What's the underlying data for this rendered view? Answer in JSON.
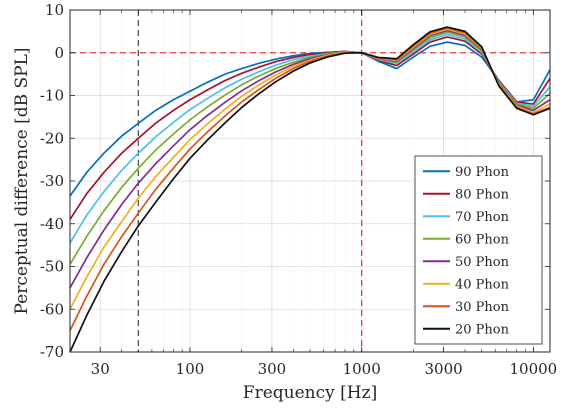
{
  "chart_data": {
    "type": "line",
    "title": "",
    "xlabel": "Frequency [Hz]",
    "ylabel": "Perceptual difference [dB SPL]",
    "xscale": "log",
    "xlim": [
      20,
      12500
    ],
    "ylim": [
      -70,
      10
    ],
    "grid": true,
    "xticks": [
      30,
      100,
      300,
      1000,
      3000,
      10000
    ],
    "xtick_labels": [
      "30",
      "100",
      "300",
      "1000",
      "3000",
      "10000"
    ],
    "yticks": [
      -70,
      -60,
      -50,
      -40,
      -30,
      -20,
      -10,
      0,
      10
    ],
    "ytick_labels": [
      "-70",
      "-60",
      "-50",
      "-40",
      "-30",
      "-20",
      "-10",
      "0",
      "10"
    ],
    "legend_position": "bottom-right",
    "reference_lines": [
      {
        "axis": "x",
        "value": 50,
        "color": "#555555",
        "style": "dashed"
      },
      {
        "axis": "x",
        "value": 1000,
        "color": "#e8383d",
        "style": "dashed"
      },
      {
        "axis": "y",
        "value": 0,
        "color": "#e8383d",
        "style": "dashed"
      }
    ],
    "x": [
      20,
      25,
      31.5,
      40,
      50,
      63,
      80,
      100,
      125,
      160,
      200,
      250,
      315,
      400,
      500,
      630,
      800,
      1000,
      1250,
      1600,
      2000,
      2500,
      3150,
      4000,
      5000,
      6300,
      8000,
      10000,
      12500
    ],
    "series": [
      {
        "name": "90 Phon",
        "color": "#0072bd",
        "values": [
          -33.5,
          -28.0,
          -23.5,
          -19.5,
          -16.5,
          -13.5,
          -11.0,
          -9.0,
          -7.0,
          -5.0,
          -3.7,
          -2.5,
          -1.5,
          -0.7,
          -0.2,
          0.1,
          0.3,
          0.0,
          -2.0,
          -3.7,
          -1.0,
          1.5,
          2.5,
          1.7,
          -1.0,
          -6.5,
          -11.5,
          -11.0,
          -4.0
        ]
      },
      {
        "name": "80 Phon",
        "color": "#a2142f",
        "values": [
          -39.0,
          -33.0,
          -28.0,
          -23.5,
          -20.0,
          -16.5,
          -13.5,
          -11.0,
          -8.8,
          -6.5,
          -4.8,
          -3.4,
          -2.1,
          -1.1,
          -0.4,
          0.0,
          0.3,
          0.0,
          -1.8,
          -3.0,
          -0.3,
          2.5,
          3.7,
          2.7,
          -0.3,
          -6.5,
          -11.5,
          -12.0,
          -6.0
        ]
      },
      {
        "name": "70 Phon",
        "color": "#4dbeee",
        "values": [
          -44.5,
          -38.0,
          -32.5,
          -27.5,
          -23.5,
          -19.7,
          -16.3,
          -13.3,
          -10.8,
          -8.2,
          -6.2,
          -4.5,
          -2.9,
          -1.6,
          -0.8,
          -0.2,
          0.2,
          0.0,
          -1.6,
          -2.5,
          0.2,
          3.0,
          4.3,
          3.2,
          0.1,
          -6.8,
          -11.8,
          -12.5,
          -8.0
        ]
      },
      {
        "name": "60 Phon",
        "color": "#77ac30",
        "values": [
          -49.5,
          -43.0,
          -37.0,
          -31.5,
          -27.0,
          -22.8,
          -19.0,
          -15.7,
          -12.8,
          -9.9,
          -7.5,
          -5.5,
          -3.7,
          -2.2,
          -1.1,
          -0.3,
          0.2,
          0.0,
          -1.5,
          -2.2,
          0.7,
          3.5,
          4.8,
          3.7,
          0.5,
          -7.0,
          -12.0,
          -13.0,
          -9.5
        ]
      },
      {
        "name": "50 Phon",
        "color": "#7e2f8e",
        "values": [
          -55.0,
          -48.0,
          -41.5,
          -35.5,
          -30.5,
          -26.0,
          -21.8,
          -18.0,
          -14.8,
          -11.6,
          -8.9,
          -6.6,
          -4.5,
          -2.7,
          -1.4,
          -0.5,
          0.1,
          0.0,
          -1.4,
          -2.0,
          1.0,
          4.0,
          5.2,
          4.1,
          0.8,
          -7.3,
          -12.3,
          -13.5,
          -11.0
        ]
      },
      {
        "name": "40 Phon",
        "color": "#edb120",
        "values": [
          -60.0,
          -52.5,
          -45.5,
          -39.5,
          -34.0,
          -29.0,
          -24.5,
          -20.3,
          -16.8,
          -13.2,
          -10.2,
          -7.6,
          -5.2,
          -3.2,
          -1.7,
          -0.6,
          0.1,
          0.0,
          -1.3,
          -1.8,
          1.3,
          4.3,
          5.5,
          4.4,
          1.0,
          -7.5,
          -12.5,
          -14.0,
          -12.0
        ]
      },
      {
        "name": "30 Phon",
        "color": "#d95319",
        "values": [
          -65.0,
          -57.0,
          -49.5,
          -43.0,
          -37.5,
          -32.0,
          -27.0,
          -22.5,
          -18.7,
          -14.8,
          -11.5,
          -8.7,
          -6.0,
          -3.7,
          -2.0,
          -0.8,
          0.0,
          0.0,
          -1.2,
          -1.6,
          1.6,
          4.6,
          5.8,
          4.7,
          1.2,
          -7.7,
          -12.8,
          -14.3,
          -12.8
        ]
      },
      {
        "name": "20 Phon",
        "color": "#111111",
        "values": [
          -70.0,
          -61.5,
          -53.5,
          -46.5,
          -40.5,
          -35.0,
          -29.5,
          -24.7,
          -20.6,
          -16.4,
          -12.8,
          -9.7,
          -6.8,
          -4.3,
          -2.4,
          -1.0,
          -0.1,
          0.0,
          -1.1,
          -1.4,
          1.9,
          4.9,
          6.0,
          5.0,
          1.4,
          -7.8,
          -13.0,
          -14.5,
          -13.0
        ]
      }
    ]
  }
}
